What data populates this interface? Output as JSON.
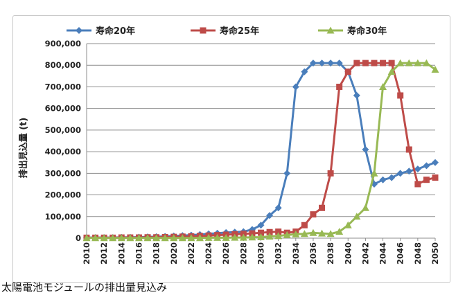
{
  "caption": "太陽電池モジュールの排出量見込み",
  "chart_data": {
    "type": "line",
    "title": "",
    "xlabel": "",
    "ylabel": "排出見込量 (t)",
    "ylim": [
      0,
      900000
    ],
    "ytick_values": [
      0,
      100000,
      200000,
      300000,
      400000,
      500000,
      600000,
      700000,
      800000,
      900000
    ],
    "ytick_labels": [
      "0",
      "100,000",
      "200,000",
      "300,000",
      "400,000",
      "500,000",
      "600,000",
      "700,000",
      "800,000",
      "900,000"
    ],
    "xlim": [
      2010,
      2050
    ],
    "xtick_labels": [
      "2010",
      "2012",
      "2014",
      "2016",
      "2018",
      "2020",
      "2022",
      "2024",
      "2026",
      "2028",
      "2030",
      "2032",
      "2034",
      "2036",
      "2038",
      "2040",
      "2042",
      "2044",
      "2046",
      "2048",
      "2050"
    ],
    "grid": "horizontal",
    "legend_position": "top",
    "x": [
      2010,
      2011,
      2012,
      2013,
      2014,
      2015,
      2016,
      2017,
      2018,
      2019,
      2020,
      2021,
      2022,
      2023,
      2024,
      2025,
      2026,
      2027,
      2028,
      2029,
      2030,
      2031,
      2032,
      2033,
      2034,
      2035,
      2036,
      2037,
      2038,
      2039,
      2040,
      2041,
      2042,
      2043,
      2044,
      2045,
      2046,
      2047,
      2048,
      2049,
      2050
    ],
    "series": [
      {
        "name": "寿命20年",
        "color": "#4a7ebb",
        "marker": "diamond",
        "values": [
          3000,
          3000,
          3000,
          3000,
          4000,
          4000,
          5000,
          6000,
          7000,
          8000,
          10000,
          12000,
          14000,
          17000,
          20000,
          23000,
          26000,
          28000,
          30000,
          40000,
          60000,
          105000,
          140000,
          300000,
          700000,
          770000,
          810000,
          810000,
          810000,
          810000,
          770000,
          660000,
          410000,
          250000,
          270000,
          280000,
          300000,
          310000,
          320000,
          335000,
          350000
        ]
      },
      {
        "name": "寿命25年",
        "color": "#be4b48",
        "marker": "square",
        "values": [
          2000,
          2000,
          2000,
          2000,
          3000,
          3000,
          3000,
          4000,
          4000,
          5000,
          6000,
          7000,
          8000,
          10000,
          12000,
          14000,
          16000,
          18000,
          20000,
          22000,
          25000,
          28000,
          30000,
          25000,
          30000,
          60000,
          110000,
          140000,
          300000,
          700000,
          770000,
          810000,
          810000,
          810000,
          810000,
          810000,
          660000,
          410000,
          250000,
          270000,
          280000
        ]
      },
      {
        "name": "寿命30年",
        "color": "#98b954",
        "marker": "triangle",
        "values": [
          1000,
          1000,
          1000,
          1000,
          1000,
          1000,
          1000,
          1000,
          1000,
          1000,
          1000,
          1000,
          1000,
          1000,
          2000,
          2000,
          2000,
          3000,
          3000,
          4000,
          5000,
          8000,
          10000,
          15000,
          18000,
          20000,
          25000,
          22000,
          20000,
          30000,
          60000,
          100000,
          140000,
          300000,
          700000,
          770000,
          810000,
          810000,
          810000,
          810000,
          780000
        ]
      }
    ]
  }
}
